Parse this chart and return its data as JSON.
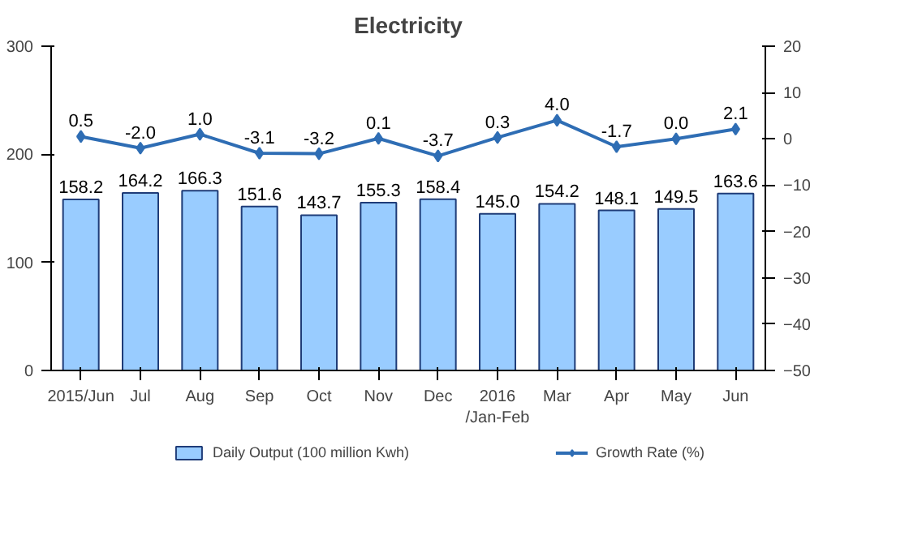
{
  "chart_data": {
    "type": "bar",
    "title": "Electricity",
    "categories": [
      "2015/Jun",
      "Jul",
      "Aug",
      "Sep",
      "Oct",
      "Nov",
      "Dec",
      "2016\n/Jan-Feb",
      "Mar",
      "Apr",
      "May",
      "Jun"
    ],
    "series": [
      {
        "name": "Daily Output (100 million Kwh)",
        "color": "#99ccff",
        "values": [
          158.2,
          164.2,
          166.3,
          151.6,
          143.7,
          155.3,
          158.4,
          145.0,
          154.2,
          148.1,
          149.5,
          163.6
        ],
        "value_labels": [
          "158.2",
          "164.2",
          "166.3",
          "151.6",
          "143.7",
          "155.3",
          "158.4",
          "145.0",
          "154.2",
          "148.1",
          "149.5",
          "163.6"
        ]
      },
      {
        "name": "Growth Rate (%)",
        "type": "line",
        "axis": "y2",
        "color": "#2e6db4",
        "marker": "diamond",
        "line_style": "solid",
        "values": [
          0.5,
          -2.0,
          1.0,
          -3.1,
          -3.2,
          0.1,
          -3.7,
          0.3,
          4.0,
          -1.7,
          0.0,
          2.1
        ],
        "value_labels": [
          "0.5",
          "-2.0",
          "1.0",
          "-3.1",
          "-3.2",
          "0.1",
          "-3.7",
          "0.3",
          "4.0",
          "-1.7",
          "0.0",
          "2.1"
        ]
      }
    ],
    "ylim": [
      0,
      300
    ],
    "yticks": [
      0,
      100,
      200,
      300
    ],
    "y2lim": [
      -50,
      20
    ],
    "y2ticks": [
      -50,
      -40,
      -30,
      -20,
      -10,
      0,
      10,
      20
    ],
    "grid": false,
    "legend": "bottom"
  }
}
